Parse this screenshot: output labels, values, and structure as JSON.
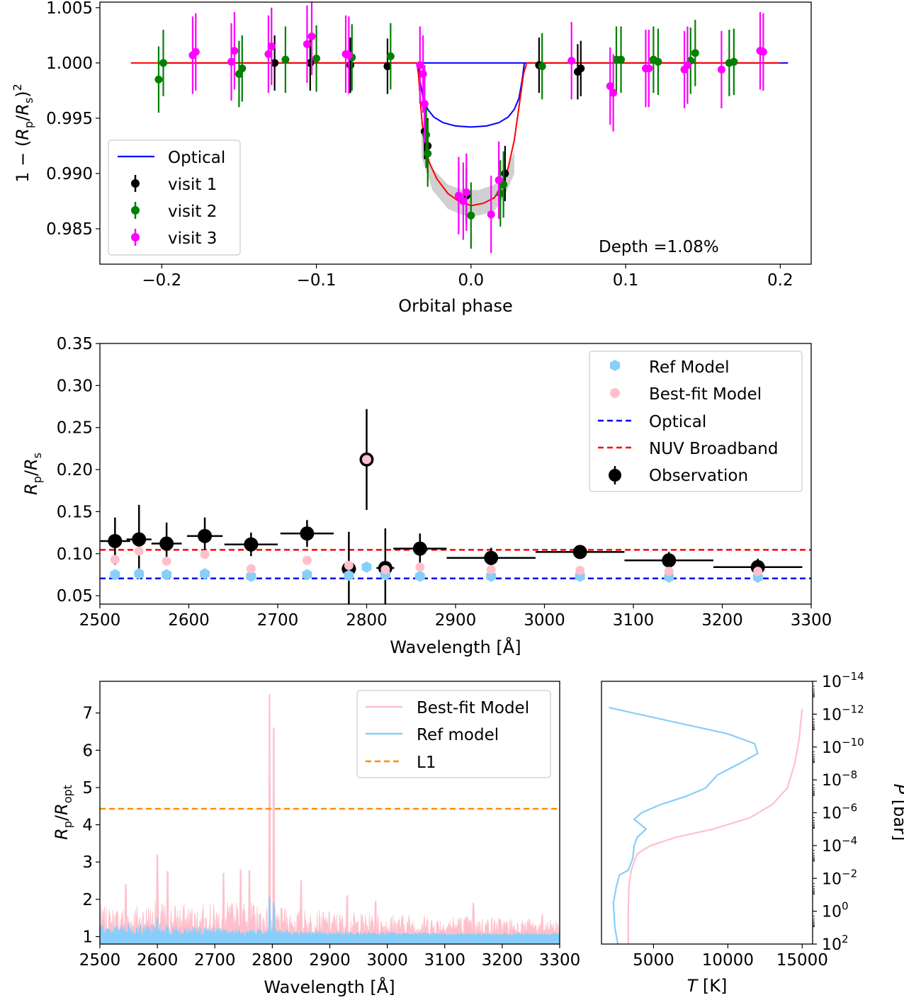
{
  "chart_data": [
    {
      "type": "scatter",
      "title": "",
      "xlabel": "Orbital phase",
      "ylabel": "1 − (R_p/R_s)^2",
      "xlim": [
        -0.24,
        0.22
      ],
      "ylim": [
        0.9818,
        1.0055
      ],
      "xticks": [
        "−0.2",
        "−0.1",
        "0.0",
        "0.1",
        "0.2"
      ],
      "xtick_values": [
        -0.2,
        -0.1,
        0.0,
        0.1,
        0.2
      ],
      "yticks": [
        "0.985",
        "0.990",
        "0.995",
        "1.000",
        "1.005"
      ],
      "ytick_values": [
        0.985,
        0.99,
        0.995,
        1.0,
        1.005
      ],
      "grid": false,
      "legend_position": "bottom-left",
      "annotation": "Depth =1.08%",
      "lines": [
        {
          "name": "Optical",
          "color": "#0000ff",
          "x": [
            -0.2,
            0.0345,
            -0.0345,
            -0.033,
            -0.031,
            -0.028,
            -0.024,
            -0.018,
            -0.01,
            0.0,
            0.01,
            0.018,
            0.024,
            0.028,
            0.031,
            0.033,
            0.0345,
            0.205
          ],
          "y": [
            1.0,
            1.0,
            1.0,
            0.9984,
            0.9968,
            0.9958,
            0.9951,
            0.9946,
            0.9943,
            0.9942,
            0.9943,
            0.9946,
            0.9951,
            0.9958,
            0.9968,
            0.9984,
            1.0,
            1.0
          ]
        },
        {
          "name": "",
          "color": "#ff0000",
          "x": [
            -0.22,
            -0.035,
            -0.034,
            -0.032,
            -0.03,
            -0.027,
            -0.022,
            -0.015,
            -0.008,
            0.0,
            0.008,
            0.015,
            0.02,
            0.024,
            0.028,
            0.031,
            0.034,
            0.036,
            0.2
          ],
          "y": [
            1.0,
            1.0,
            0.999,
            0.9952,
            0.9925,
            0.991,
            0.9895,
            0.9882,
            0.9875,
            0.9871,
            0.9873,
            0.9878,
            0.9888,
            0.9905,
            0.993,
            0.996,
            0.999,
            1.0,
            1.0
          ]
        }
      ],
      "band": {
        "x": [
          -0.032,
          -0.025,
          -0.015,
          -0.005,
          0.005,
          0.015,
          0.022,
          0.028
        ],
        "lower": [
          0.9915,
          0.9885,
          0.9868,
          0.9862,
          0.9862,
          0.9866,
          0.988,
          0.99
        ],
        "upper": [
          0.9935,
          0.9905,
          0.989,
          0.9885,
          0.9885,
          0.989,
          0.99,
          0.992
        ]
      },
      "series": [
        {
          "name": "visit 1",
          "color": "#000000",
          "x": [
            -0.127,
            -0.104,
            -0.078,
            -0.054,
            -0.03,
            -0.028,
            -0.003,
            0.022,
            0.044,
            0.069,
            0.071
          ],
          "y": [
            1.0,
            1.0,
            0.9998,
            0.9997,
            0.9938,
            0.9925,
            0.988,
            0.99,
            0.9998,
            0.9992,
            0.9995
          ],
          "err": [
            0.0025,
            0.0025,
            0.0025,
            0.0025,
            0.0025,
            0.0025,
            0.0025,
            0.0025,
            0.0025,
            0.0025,
            0.0025
          ]
        },
        {
          "name": "visit 2",
          "color": "#008000",
          "x": [
            -0.202,
            -0.199,
            -0.15,
            -0.148,
            -0.12,
            -0.1,
            -0.077,
            -0.052,
            -0.029,
            -0.028,
            0.0,
            0.019,
            0.021,
            0.046,
            0.094,
            0.097,
            0.118,
            0.121,
            0.142,
            0.145,
            0.167,
            0.17
          ],
          "y": [
            0.9985,
            1.0,
            0.999,
            0.9995,
            1.0003,
            1.0004,
            1.0005,
            1.0006,
            0.9935,
            0.9918,
            0.9862,
            0.9882,
            0.989,
            0.9997,
            1.0003,
            1.0003,
            1.0003,
            1.0001,
            1.0002,
            1.0009,
            1.0,
            1.0001
          ],
          "err": [
            0.003,
            0.003,
            0.003,
            0.003,
            0.003,
            0.003,
            0.003,
            0.003,
            0.003,
            0.003,
            0.003,
            0.003,
            0.003,
            0.003,
            0.003,
            0.003,
            0.003,
            0.003,
            0.003,
            0.003,
            0.003,
            0.003
          ]
        },
        {
          "name": "visit 3",
          "color": "#ff00ff",
          "x": [
            -0.18,
            -0.178,
            -0.155,
            -0.153,
            -0.131,
            -0.129,
            -0.106,
            -0.103,
            -0.081,
            -0.079,
            -0.033,
            -0.031,
            -0.03,
            -0.008,
            -0.005,
            -0.003,
            0.013,
            0.018,
            0.065,
            0.09,
            0.092,
            0.113,
            0.115,
            0.138,
            0.14,
            0.162,
            0.187,
            0.189
          ],
          "y": [
            1.0007,
            1.001,
            1.0001,
            1.0011,
            1.0008,
            1.0015,
            1.0017,
            1.0024,
            1.0008,
            1.0007,
            0.9998,
            0.999,
            0.9963,
            0.988,
            0.9875,
            0.9883,
            0.9863,
            0.9894,
            1.0002,
            0.9979,
            0.9973,
            0.9995,
            0.9995,
            0.9994,
            0.9998,
            0.9994,
            1.0011,
            1.001
          ],
          "err": [
            0.0035,
            0.0035,
            0.0035,
            0.0035,
            0.0035,
            0.0035,
            0.0035,
            0.0035,
            0.0035,
            0.0035,
            0.0035,
            0.0035,
            0.0035,
            0.0035,
            0.0035,
            0.0035,
            0.0035,
            0.0035,
            0.0035,
            0.0035,
            0.0035,
            0.0035,
            0.0035,
            0.0035,
            0.0035,
            0.0035,
            0.0035,
            0.0035
          ]
        }
      ]
    },
    {
      "type": "scatter",
      "title": "",
      "xlabel": "Wavelength [Å]",
      "ylabel": "R_p/R_s",
      "xlim": [
        2500,
        3300
      ],
      "ylim": [
        0.04,
        0.35
      ],
      "xticks": [
        "2500",
        "2600",
        "2700",
        "2800",
        "2900",
        "3000",
        "3100",
        "3200",
        "3300"
      ],
      "xtick_values": [
        2500,
        2600,
        2700,
        2800,
        2900,
        3000,
        3100,
        3200,
        3300
      ],
      "yticks": [
        "0.05",
        "0.10",
        "0.15",
        "0.20",
        "0.25",
        "0.30",
        "0.35"
      ],
      "ytick_values": [
        0.05,
        0.1,
        0.15,
        0.2,
        0.25,
        0.3,
        0.35
      ],
      "grid": false,
      "legend_position": "top-right",
      "legend": [
        "Ref Model",
        "Best-fit Model",
        "Optical",
        "NUV Broadband",
        "Observation"
      ],
      "hlines": [
        {
          "name": "Optical",
          "y": 0.0705,
          "color": "#0000ee"
        },
        {
          "name": "NUV Broadband",
          "y": 0.1045,
          "color": "#ff0000"
        }
      ],
      "observation": {
        "x": [
          2517,
          2544,
          2575,
          2618,
          2670,
          2733,
          2780,
          2800,
          2821,
          2860,
          2940,
          3040,
          3140,
          3240
        ],
        "y": [
          0.115,
          0.117,
          0.112,
          0.121,
          0.111,
          0.124,
          0.082,
          0.212,
          0.083,
          0.106,
          0.095,
          0.102,
          0.092,
          0.084
        ],
        "xerr": [
          17,
          14,
          17,
          20,
          30,
          30,
          8,
          4,
          10,
          30,
          50,
          50,
          50,
          50
        ],
        "yerr": [
          0.028,
          0.041,
          0.025,
          0.022,
          0.014,
          0.016,
          0.044,
          0.06,
          0.047,
          0.018,
          0.012,
          0.008,
          0.01,
          0.01
        ]
      },
      "ref_model": {
        "x": [
          2517,
          2544,
          2575,
          2618,
          2670,
          2733,
          2780,
          2800,
          2821,
          2860,
          2940,
          3040,
          3140,
          3240
        ],
        "y": [
          0.075,
          0.076,
          0.075,
          0.076,
          0.073,
          0.075,
          0.074,
          0.084,
          0.075,
          0.073,
          0.073,
          0.073,
          0.072,
          0.072
        ]
      },
      "bestfit_model": {
        "x": [
          2517,
          2544,
          2575,
          2618,
          2670,
          2733,
          2780,
          2800,
          2821,
          2860,
          2940,
          3040,
          3140,
          3240
        ],
        "y": [
          0.093,
          0.103,
          0.091,
          0.099,
          0.082,
          0.092,
          0.086,
          0.212,
          0.081,
          0.084,
          0.081,
          0.08,
          0.079,
          0.079
        ]
      }
    },
    {
      "type": "area",
      "title": "",
      "xlabel": "Wavelength [Å]",
      "ylabel": "R_p/R_opt",
      "xlim": [
        2500,
        3300
      ],
      "ylim": [
        0.8,
        7.85
      ],
      "xticks": [
        "2500",
        "2600",
        "2700",
        "2800",
        "2900",
        "3000",
        "3100",
        "3200",
        "3300"
      ],
      "xtick_values": [
        2500,
        2600,
        2700,
        2800,
        2900,
        3000,
        3100,
        3200,
        3300
      ],
      "yticks": [
        "1",
        "2",
        "3",
        "4",
        "5",
        "6",
        "7"
      ],
      "ytick_values": [
        1,
        2,
        3,
        4,
        5,
        6,
        7
      ],
      "grid": false,
      "legend_position": "top-right",
      "series": [
        {
          "name": "Best-fit Model",
          "color": "#ffc0cb",
          "baseline": 1.05,
          "peaks": [
            [
              2600,
              3.2
            ],
            [
              2618,
              2.75
            ],
            [
              2545,
              2.4
            ],
            [
              2715,
              2.7
            ],
            [
              2745,
              2.8
            ],
            [
              2760,
              2.78
            ],
            [
              2795.5,
              7.5
            ],
            [
              2802.8,
              6.6
            ],
            [
              2850,
              2.5
            ],
            [
              2930,
              2.1
            ],
            [
              2980,
              1.95
            ],
            [
              3150,
              1.9
            ],
            [
              3270,
              1.6
            ]
          ],
          "envelope": {
            "x": [
              2500,
              2550,
              2600,
              2650,
              2700,
              2750,
              2800,
              2850,
              2900,
              2950,
              3000,
              3100,
              3200,
              3300
            ],
            "y": [
              1.8,
              1.9,
              2.0,
              1.9,
              1.9,
              2.0,
              1.8,
              1.75,
              1.7,
              1.65,
              1.65,
              1.6,
              1.55,
              1.45
            ]
          }
        },
        {
          "name": "Ref model",
          "color": "#87cefa",
          "baseline": 1.03,
          "peaks": [
            [
              2600,
              1.5
            ],
            [
              2795.5,
              2.05
            ],
            [
              2802.8,
              1.9
            ]
          ],
          "envelope": {
            "x": [
              2500,
              2600,
              2700,
              2800,
              2900,
              3000,
              3300
            ],
            "y": [
              1.35,
              1.35,
              1.25,
              1.2,
              1.15,
              1.12,
              1.1
            ]
          }
        }
      ],
      "hlines": [
        {
          "name": "L1",
          "y": 4.43,
          "color": "#ff8c00"
        }
      ]
    },
    {
      "type": "line",
      "title": "",
      "xlabel": "T [K]",
      "ylabel": "P [bar]",
      "xlim": [
        1500,
        15700
      ],
      "ylog_exponent_range": [
        -14,
        2
      ],
      "xticks": [
        "5000",
        "10000",
        "15000"
      ],
      "xtick_values": [
        5000,
        10000,
        15000
      ],
      "yticks": [
        "10−14",
        "10−12",
        "10−10",
        "10−8",
        "10−6",
        "10−4",
        "10−2",
        "100",
        "102"
      ],
      "ytick_exponents": [
        -14,
        -12,
        -10,
        -8,
        -6,
        -4,
        -2,
        0,
        2
      ],
      "grid": false,
      "series": [
        {
          "name": "",
          "color": "#ffc0cb",
          "T": [
            3300,
            3300,
            3350,
            3500,
            3900,
            4800,
            6500,
            9000,
            11500,
            13000,
            14000,
            14500,
            14800,
            14900,
            15000
          ],
          "logP": [
            2,
            0,
            -1.5,
            -2.5,
            -3.5,
            -4,
            -4.5,
            -5,
            -5.7,
            -6.5,
            -7.5,
            -9,
            -10.5,
            -11.5,
            -12.3
          ]
        },
        {
          "name": "",
          "color": "#87cefa",
          "T": [
            2600,
            2400,
            2300,
            2500,
            2700,
            3300,
            3600,
            3700,
            3900,
            4500,
            3700,
            4200,
            5500,
            7200,
            8500,
            8800,
            9300,
            10800,
            12000,
            11800,
            10000,
            7000,
            4000,
            2000
          ],
          "logP": [
            2,
            1,
            -0.5,
            -1.5,
            -2.2,
            -2.5,
            -3.2,
            -4,
            -4.5,
            -5,
            -5.6,
            -6,
            -6.5,
            -7,
            -7.5,
            -7.8,
            -8.3,
            -9,
            -9.6,
            -10.2,
            -10.8,
            -11.4,
            -12,
            -12.4
          ]
        }
      ]
    }
  ]
}
